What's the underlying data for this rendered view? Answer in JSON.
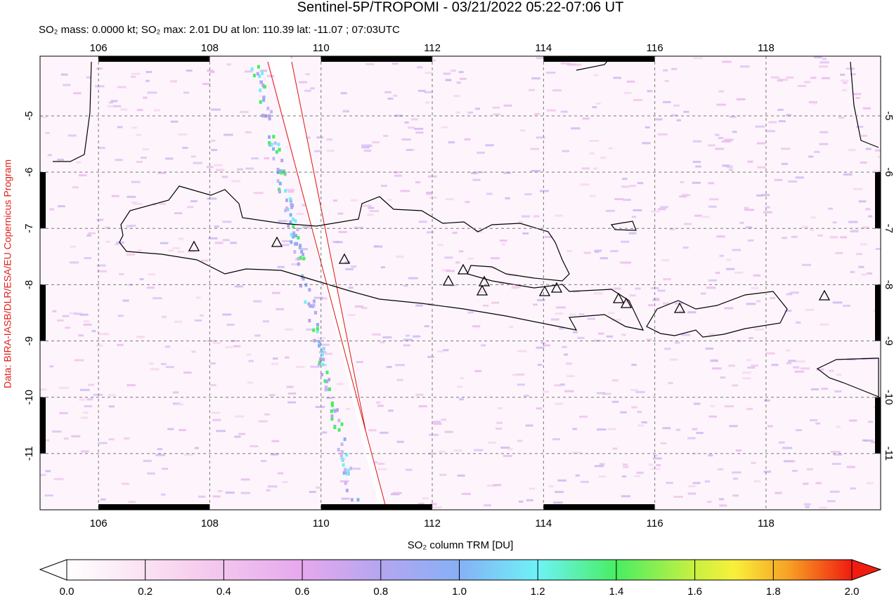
{
  "header": {
    "title": "Sentinel-5P/TROPOMI - 03/21/2022 05:22-07:06 UT",
    "subtitle": "SO₂ mass: 0.0000 kt; SO₂ max: 2.01 DU at lon: 110.39 lat: -11.07 ; 07:03UTC"
  },
  "credit": "Data: BIRA-IASB/DLR/ESA/EU Copernicus Program",
  "map": {
    "xlim": [
      104.95,
      120.06
    ],
    "ylim": [
      -12.0,
      -3.94
    ],
    "xticks": [
      106,
      108,
      110,
      112,
      114,
      116,
      118
    ],
    "yticks": [
      -5,
      -6,
      -7,
      -8,
      -9,
      -10,
      -11
    ]
  },
  "colorbar": {
    "label": "SO₂ column TRM [DU]",
    "lim": [
      0,
      2
    ],
    "ticks": [
      {
        "value": 0,
        "label": "0.0"
      },
      0.2,
      0.4,
      0.6,
      0.8,
      {
        "value": 1,
        "label": "1.0"
      },
      1.2,
      1.4,
      1.6,
      1.8,
      {
        "value": 2,
        "label": "2.0"
      }
    ]
  }
}
